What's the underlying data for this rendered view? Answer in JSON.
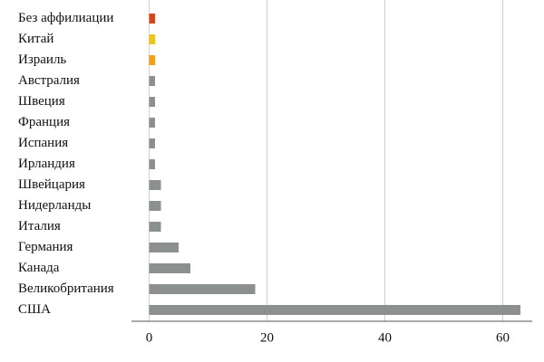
{
  "chart_data": {
    "type": "barh",
    "categories": [
      "Без аффилиации",
      "Китай",
      "Израиль",
      "Австралия",
      "Швеция",
      "Франция",
      "Испания",
      "Ирландия",
      "Швейцария",
      "Нидерланды",
      "Италия",
      "Германия",
      "Канада",
      "Великобритания",
      "США"
    ],
    "values": [
      1,
      1,
      1,
      1,
      1,
      1,
      1,
      1,
      2,
      2,
      2,
      5,
      7,
      18,
      63
    ],
    "colors": [
      "#d9441c",
      "#f0c419",
      "#f5a01a",
      "#8c9190",
      "#8c9190",
      "#8c9190",
      "#8c9190",
      "#8c9190",
      "#8c9190",
      "#8c9190",
      "#8c9190",
      "#8c9190",
      "#8c9190",
      "#8c9190",
      "#8c9190"
    ],
    "xlim": [
      -3,
      65
    ],
    "xticks": [
      0,
      20,
      40,
      60
    ],
    "grid": true
  }
}
